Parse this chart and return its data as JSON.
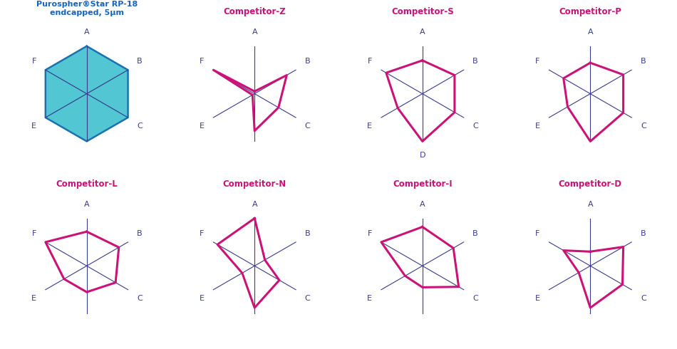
{
  "charts": [
    {
      "title": "Purospher®Star RP-18\nendcapped, 5μm",
      "title_color": "#1565c0",
      "labels": [
        "A",
        "B",
        "C",
        "",
        "E",
        "F"
      ],
      "values": [
        1.0,
        1.0,
        1.0,
        1.0,
        1.0,
        1.0
      ],
      "fill_color": "#3bbfce",
      "line_color": "#1a72b0",
      "filled": true
    },
    {
      "title": "Competitor-Z",
      "title_color": "#cc1177",
      "labels": [
        "A",
        "B",
        "C",
        "",
        "E",
        "F"
      ],
      "values": [
        0.05,
        0.78,
        0.58,
        0.78,
        0.05,
        1.0
      ],
      "fill_color": "none",
      "line_color": "#cc1177",
      "filled": false
    },
    {
      "title": "Competitor-S",
      "title_color": "#cc1177",
      "labels": [
        "A",
        "B",
        "C",
        "D",
        "E",
        "F"
      ],
      "values": [
        0.7,
        0.78,
        0.78,
        1.0,
        0.6,
        0.88
      ],
      "fill_color": "none",
      "line_color": "#cc1177",
      "filled": false
    },
    {
      "title": "Competitor-P",
      "title_color": "#cc1177",
      "labels": [
        "A",
        "B",
        "C",
        "",
        "E",
        "F"
      ],
      "values": [
        0.65,
        0.8,
        0.8,
        1.0,
        0.55,
        0.65
      ],
      "fill_color": "none",
      "line_color": "#cc1177",
      "filled": false
    },
    {
      "title": "Competitor-L",
      "title_color": "#cc1177",
      "labels": [
        "A",
        "B",
        "C",
        "",
        "E",
        "F"
      ],
      "values": [
        0.72,
        0.78,
        0.7,
        0.55,
        0.55,
        1.0
      ],
      "fill_color": "none",
      "line_color": "#cc1177",
      "filled": false
    },
    {
      "title": "Competitor-N",
      "title_color": "#cc1177",
      "labels": [
        "A",
        "B",
        "C",
        "",
        "E",
        "F"
      ],
      "values": [
        1.0,
        0.25,
        0.6,
        0.88,
        0.3,
        0.9
      ],
      "fill_color": "none",
      "line_color": "#cc1177",
      "filled": false
    },
    {
      "title": "Competitor-I",
      "title_color": "#cc1177",
      "labels": [
        "A",
        "B",
        "C",
        "",
        "E",
        "F"
      ],
      "values": [
        0.82,
        0.75,
        0.88,
        0.45,
        0.42,
        1.0
      ],
      "fill_color": "none",
      "line_color": "#cc1177",
      "filled": false
    },
    {
      "title": "Competitor-D",
      "title_color": "#cc1177",
      "labels": [
        "A",
        "B",
        "C",
        "",
        "E",
        "F"
      ],
      "values": [
        0.3,
        0.8,
        0.78,
        0.88,
        0.28,
        0.65
      ],
      "fill_color": "none",
      "line_color": "#cc1177",
      "filled": false
    }
  ],
  "axis_color": "#3a3b8c",
  "axis_label_color": "#3a3b8c",
  "background_color": "#ffffff",
  "fig_width": 9.5,
  "fig_height": 4.9
}
